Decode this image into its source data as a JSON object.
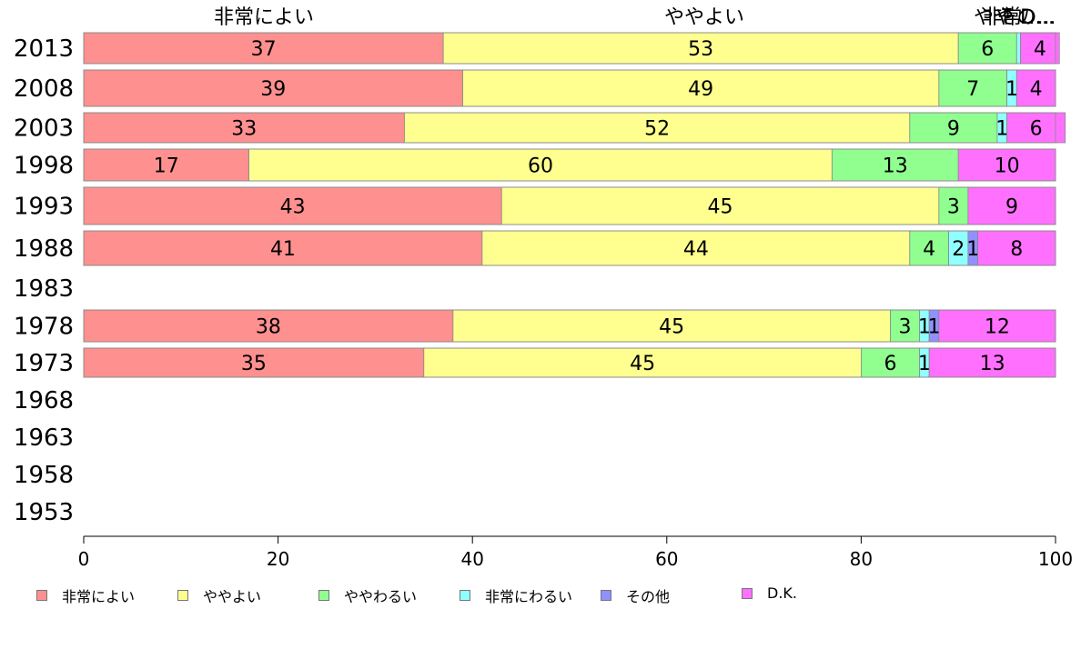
{
  "chart_data": {
    "type": "bar",
    "orientation": "horizontal",
    "stacked": true,
    "xlim": [
      0,
      100
    ],
    "x_ticks": [
      0,
      20,
      40,
      60,
      80,
      100
    ],
    "categories": [
      "2013",
      "2008",
      "2003",
      "1998",
      "1993",
      "1988",
      "1983",
      "1978",
      "1973",
      "1968",
      "1963",
      "1958",
      "1953"
    ],
    "series": [
      {
        "name": "非常によい",
        "color": "#ff9090",
        "values": [
          37,
          39,
          33,
          17,
          43,
          41,
          null,
          38,
          35,
          null,
          null,
          null,
          null
        ]
      },
      {
        "name": "ややよい",
        "color": "#ffff90",
        "values": [
          53,
          49,
          52,
          60,
          45,
          44,
          null,
          45,
          45,
          null,
          null,
          null,
          null
        ]
      },
      {
        "name": "ややわるい",
        "color": "#90ff90",
        "values": [
          6,
          7,
          9,
          13,
          3,
          4,
          null,
          3,
          6,
          null,
          null,
          null,
          null
        ]
      },
      {
        "name": "非常にわるい",
        "color": "#90ffff",
        "values": [
          0.4,
          1,
          1,
          0,
          0,
          2,
          null,
          1,
          1,
          null,
          null,
          null,
          null
        ]
      },
      {
        "name": "その他",
        "color": "#9090ff",
        "values": [
          0,
          0,
          0,
          0,
          0,
          1,
          null,
          1,
          0,
          null,
          null,
          null,
          null
        ]
      },
      {
        "name": "D.K.",
        "color": "#ff70ff",
        "values": [
          4,
          4,
          6,
          10,
          9,
          8,
          null,
          12,
          13,
          null,
          null,
          null,
          null
        ]
      }
    ],
    "top_labels": [
      "非常によい",
      "ややよい",
      "やや",
      "非常...",
      "その...",
      "D..."
    ],
    "legend_position": "bottom",
    "grid": false
  }
}
